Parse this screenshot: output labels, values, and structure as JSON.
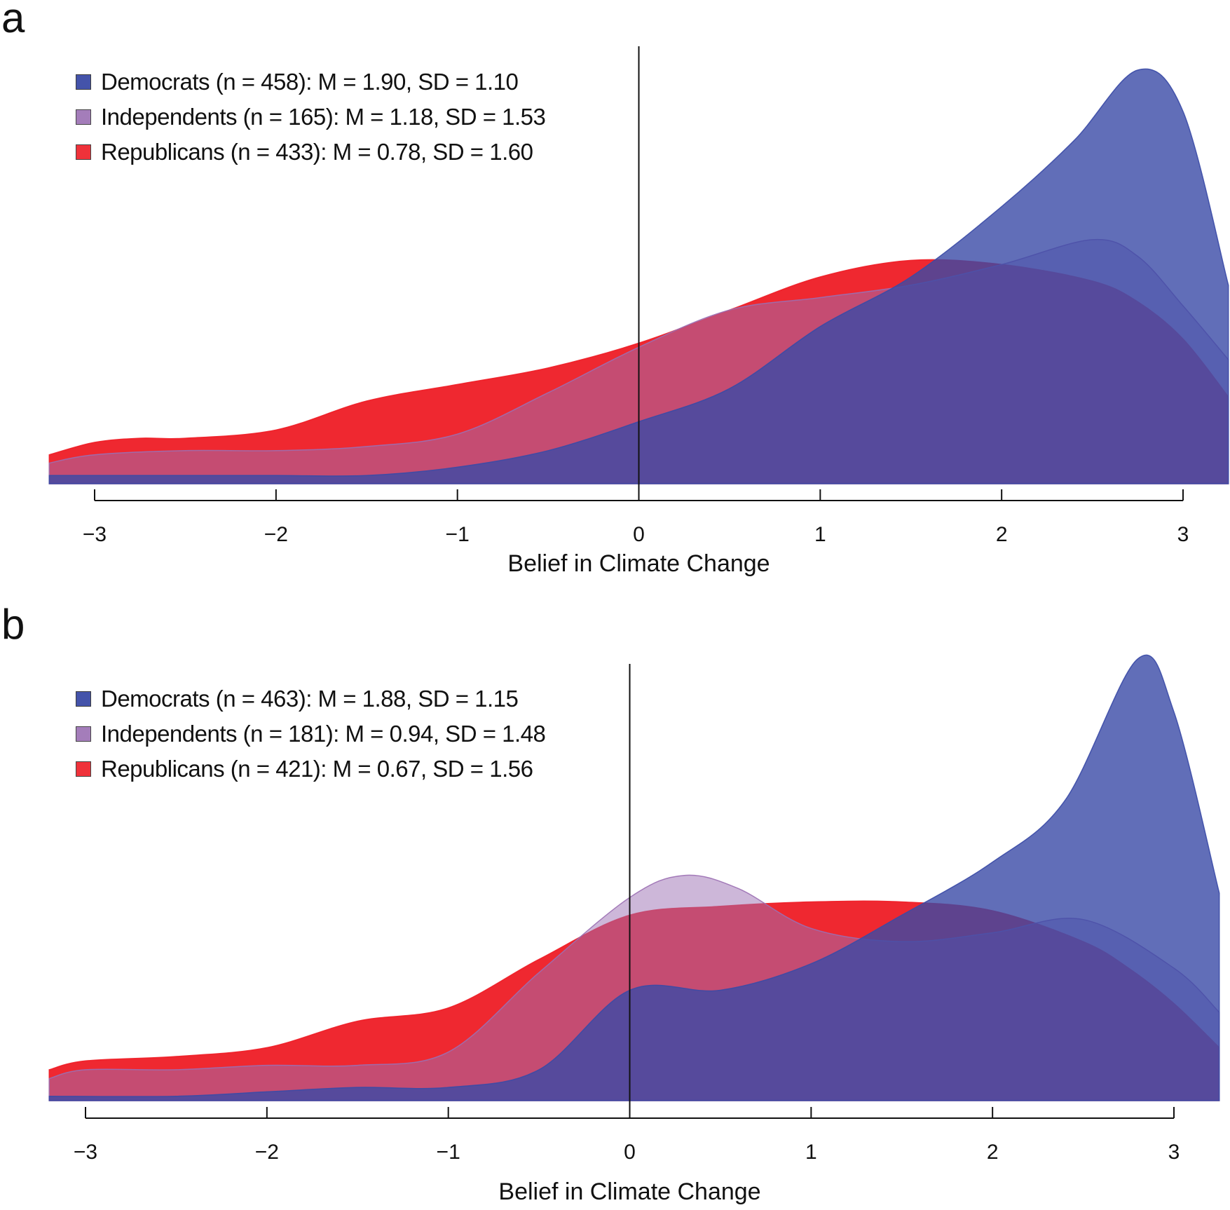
{
  "colors": {
    "democrats": "#3a4aa6",
    "independents": "#9b6fb3",
    "republicans": "#ee1c25",
    "axis": "#111111"
  },
  "chart_data": [
    {
      "panel_label": "a",
      "type": "area",
      "xlabel": "Belief in Climate Change",
      "xlim": [
        -3.25,
        3.25
      ],
      "xticks": [
        -3,
        -2,
        -1,
        0,
        1,
        2,
        3
      ],
      "xtick_labels": [
        "−3",
        "−2",
        "−1",
        "0",
        "1",
        "2",
        "3"
      ],
      "reference_line_x": 0,
      "legend": [
        "Democrats (n = 458): M = 1.90, SD = 1.10",
        "Independents (n = 165): M = 1.18, SD = 1.53",
        "Republicans (n = 433): M = 0.78, SD = 1.60"
      ],
      "series": [
        {
          "key": "republicans",
          "opacity": 0.95,
          "points": [
            [
              -3.25,
              0.07
            ],
            [
              -3,
              0.1
            ],
            [
              -2.75,
              0.11
            ],
            [
              -2.5,
              0.11
            ],
            [
              -2,
              0.13
            ],
            [
              -1.5,
              0.2
            ],
            [
              -1,
              0.24
            ],
            [
              -0.5,
              0.28
            ],
            [
              0,
              0.34
            ],
            [
              0.5,
              0.42
            ],
            [
              1,
              0.5
            ],
            [
              1.5,
              0.54
            ],
            [
              2,
              0.53
            ],
            [
              2.5,
              0.49
            ],
            [
              2.75,
              0.44
            ],
            [
              3,
              0.35
            ],
            [
              3.25,
              0.21
            ]
          ]
        },
        {
          "key": "independents",
          "opacity": 0.5,
          "points": [
            [
              -3.25,
              0.05
            ],
            [
              -3,
              0.07
            ],
            [
              -2.5,
              0.08
            ],
            [
              -2,
              0.08
            ],
            [
              -1.5,
              0.09
            ],
            [
              -1,
              0.12
            ],
            [
              -0.5,
              0.22
            ],
            [
              0,
              0.33
            ],
            [
              0.5,
              0.42
            ],
            [
              1,
              0.45
            ],
            [
              1.5,
              0.48
            ],
            [
              2,
              0.53
            ],
            [
              2.5,
              0.59
            ],
            [
              2.75,
              0.55
            ],
            [
              3,
              0.43
            ],
            [
              3.25,
              0.3
            ]
          ]
        },
        {
          "key": "democrats",
          "opacity": 0.8,
          "points": [
            [
              -3.25,
              0.02
            ],
            [
              -2.5,
              0.02
            ],
            [
              -2,
              0.02
            ],
            [
              -1.5,
              0.02
            ],
            [
              -1,
              0.04
            ],
            [
              -0.5,
              0.08
            ],
            [
              0,
              0.15
            ],
            [
              0.5,
              0.23
            ],
            [
              1,
              0.38
            ],
            [
              1.5,
              0.5
            ],
            [
              2,
              0.67
            ],
            [
              2.4,
              0.83
            ],
            [
              2.75,
              1.0
            ],
            [
              3,
              0.9
            ],
            [
              3.25,
              0.48
            ]
          ]
        }
      ]
    },
    {
      "panel_label": "b",
      "type": "area",
      "xlabel": "Belief in Climate Change",
      "xlim": [
        -3.2,
        3.25
      ],
      "xticks": [
        -3,
        -2,
        -1,
        0,
        1,
        2,
        3
      ],
      "xtick_labels": [
        "−3",
        "−2",
        "−1",
        "0",
        "1",
        "2",
        "3"
      ],
      "reference_line_x": 0,
      "legend": [
        "Democrats (n = 463): M = 1.88, SD = 1.15",
        "Independents (n = 181): M = 0.94, SD = 1.48",
        "Republicans (n = 421): M = 0.67, SD = 1.56"
      ],
      "series": [
        {
          "key": "republicans",
          "opacity": 0.95,
          "points": [
            [
              -3.2,
              0.07
            ],
            [
              -3,
              0.09
            ],
            [
              -2.5,
              0.1
            ],
            [
              -2,
              0.12
            ],
            [
              -1.5,
              0.18
            ],
            [
              -1,
              0.21
            ],
            [
              -0.5,
              0.32
            ],
            [
              0,
              0.42
            ],
            [
              0.5,
              0.44
            ],
            [
              1,
              0.45
            ],
            [
              1.5,
              0.45
            ],
            [
              2,
              0.43
            ],
            [
              2.5,
              0.36
            ],
            [
              2.75,
              0.3
            ],
            [
              3,
              0.22
            ],
            [
              3.25,
              0.12
            ]
          ]
        },
        {
          "key": "independents",
          "opacity": 0.5,
          "points": [
            [
              -3.2,
              0.05
            ],
            [
              -3,
              0.07
            ],
            [
              -2.5,
              0.07
            ],
            [
              -2,
              0.08
            ],
            [
              -1.5,
              0.08
            ],
            [
              -1,
              0.11
            ],
            [
              -0.5,
              0.29
            ],
            [
              0,
              0.46
            ],
            [
              0.3,
              0.51
            ],
            [
              0.6,
              0.48
            ],
            [
              1,
              0.39
            ],
            [
              1.5,
              0.36
            ],
            [
              2,
              0.38
            ],
            [
              2.5,
              0.41
            ],
            [
              3,
              0.3
            ],
            [
              3.25,
              0.2
            ]
          ]
        },
        {
          "key": "democrats",
          "opacity": 0.8,
          "points": [
            [
              -3.2,
              0.01
            ],
            [
              -2.5,
              0.01
            ],
            [
              -2,
              0.02
            ],
            [
              -1.5,
              0.03
            ],
            [
              -1,
              0.03
            ],
            [
              -0.5,
              0.07
            ],
            [
              0,
              0.25
            ],
            [
              0.5,
              0.25
            ],
            [
              1,
              0.31
            ],
            [
              1.5,
              0.42
            ],
            [
              2,
              0.54
            ],
            [
              2.4,
              0.68
            ],
            [
              2.8,
              1.0
            ],
            [
              3,
              0.88
            ],
            [
              3.25,
              0.47
            ]
          ]
        }
      ]
    }
  ]
}
